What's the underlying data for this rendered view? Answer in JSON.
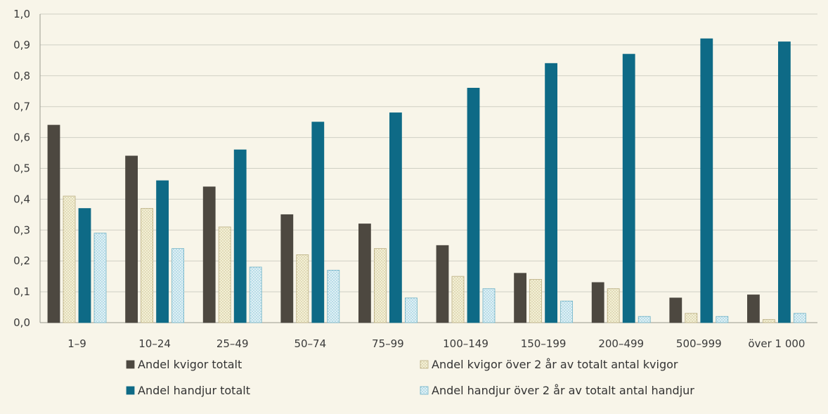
{
  "chart_data": {
    "type": "bar",
    "categories": [
      "1–9",
      "10–24",
      "25–49",
      "50–74",
      "75–99",
      "100–149",
      "150–199",
      "200–499",
      "500–999",
      "över 1 000"
    ],
    "series": [
      {
        "name": "Andel kvigor totalt",
        "color": "#4d4840",
        "pattern": "solid",
        "values": [
          0.64,
          0.54,
          0.44,
          0.35,
          0.32,
          0.25,
          0.16,
          0.13,
          0.08,
          0.09
        ]
      },
      {
        "name": "Andel kvigor över 2 år av totalt antal kvigor",
        "color": "#ece9c8",
        "pattern": "dotted",
        "values": [
          0.41,
          0.37,
          0.31,
          0.22,
          0.24,
          0.15,
          0.14,
          0.11,
          0.03,
          0.01
        ]
      },
      {
        "name": "Andel handjur totalt",
        "color": "#0e6a86",
        "pattern": "solid",
        "values": [
          0.37,
          0.46,
          0.56,
          0.65,
          0.68,
          0.76,
          0.84,
          0.87,
          0.92,
          0.91
        ]
      },
      {
        "name": "Andel handjur över 2 år av totalt antal handjur",
        "color": "#c7e6f0",
        "pattern": "dotted",
        "values": [
          0.29,
          0.24,
          0.18,
          0.17,
          0.08,
          0.11,
          0.07,
          0.02,
          0.02,
          0.03
        ]
      }
    ],
    "y_ticks": [
      "0,0",
      "0,1",
      "0,2",
      "0,3",
      "0,4",
      "0,5",
      "0,6",
      "0,7",
      "0,8",
      "0,9",
      "1,0"
    ],
    "ylim": [
      0,
      1.0
    ],
    "grid": true,
    "legend_position": "bottom"
  }
}
